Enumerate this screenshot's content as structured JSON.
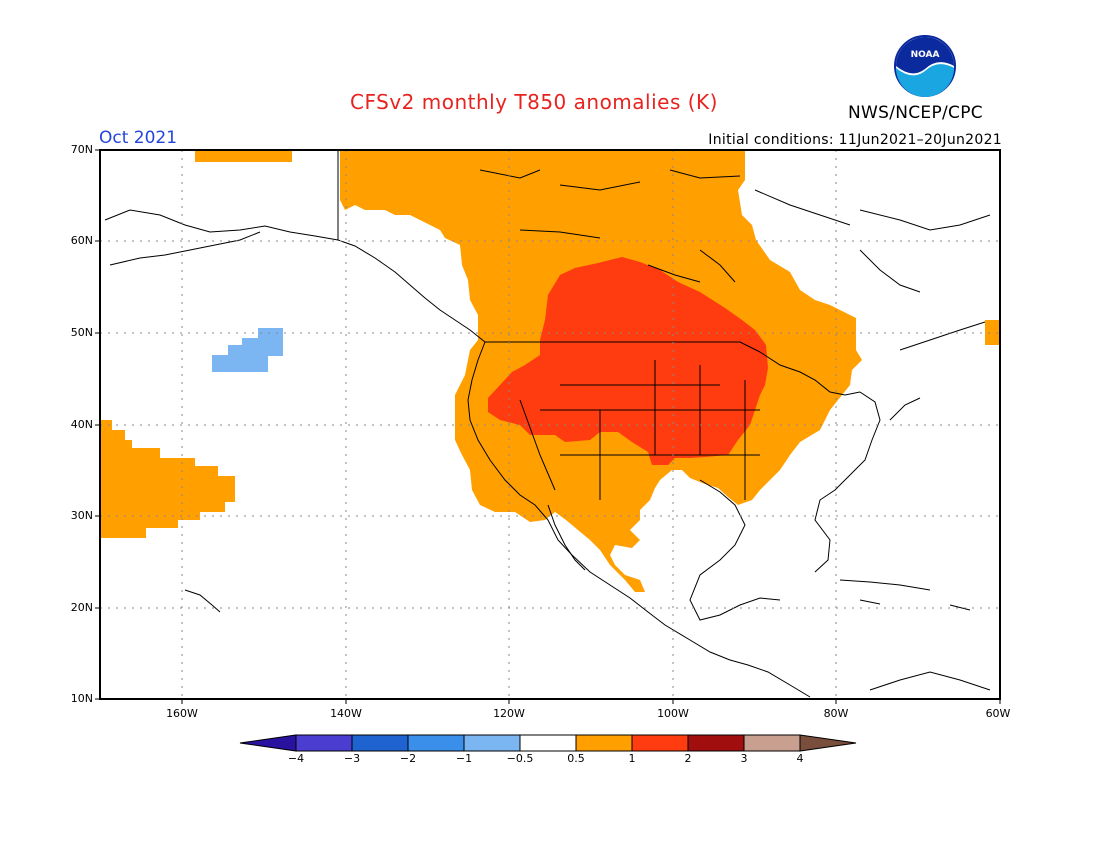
{
  "title": "CFSv2 monthly T850 anomalies (K)",
  "valid_month": "Oct 2021",
  "initial_conditions": "Initial conditions: 11Jun2021–20Jun2021",
  "agency": "NWS/NCEP/CPC",
  "logo": {
    "icon": "noaa-logo",
    "text": "NOAA"
  },
  "map": {
    "projection": "lat-lon",
    "lon_range": [
      -170,
      -60
    ],
    "lat_range": [
      10,
      70
    ],
    "lat_labels": [
      "70N",
      "60N",
      "50N",
      "40N",
      "30N",
      "20N",
      "10N"
    ],
    "lon_labels": [
      "160W",
      "140W",
      "120W",
      "100W",
      "80W",
      "60W"
    ],
    "gridlines": "dotted"
  },
  "anomaly_regions": [
    {
      "name": "warm-anomaly-north-america",
      "category": "0.5 to 1"
    },
    {
      "name": "strong-warm-anomaly-central-us-canada",
      "category": "1 to 2"
    },
    {
      "name": "warm-anomaly-central-pacific",
      "category": "0.5 to 1"
    },
    {
      "name": "cool-anomaly-gulf-of-alaska",
      "category": "-1 to -0.5"
    }
  ],
  "colorbar": {
    "labels": [
      "−4",
      "−3",
      "−2",
      "−1",
      "−0.5",
      "0.5",
      "1",
      "2",
      "3",
      "4"
    ],
    "colors": [
      "#2a12a0",
      "#4a3dd0",
      "#1f63d0",
      "#3a8fea",
      "#7cb6f2",
      "#ffffff",
      "#ff9f00",
      "#ff3b10",
      "#a00e0e",
      "#c9a08f",
      "#7a4e3c"
    ]
  }
}
